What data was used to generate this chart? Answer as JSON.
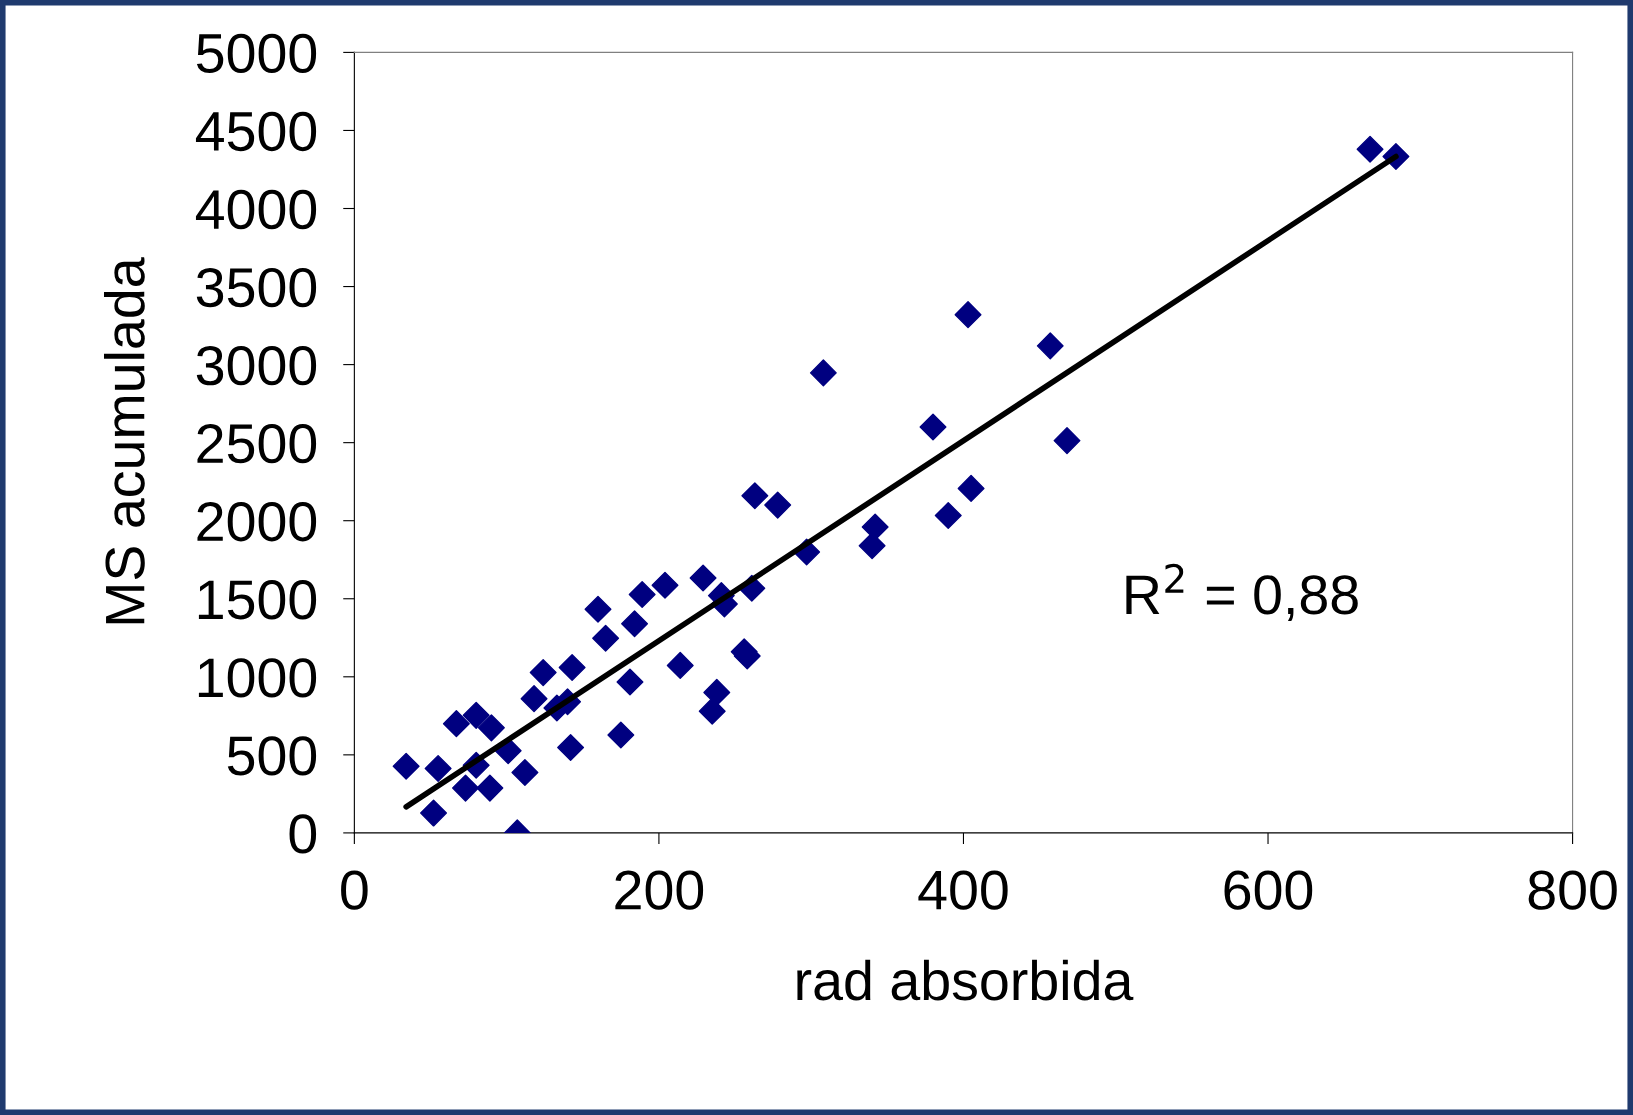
{
  "chart_data": {
    "type": "scatter",
    "xlabel": "rad absorbida",
    "ylabel": "MS acumulada",
    "marker": "diamond",
    "grid": false,
    "legend": false,
    "xlim": [
      0,
      800
    ],
    "xticks": [
      0,
      200,
      400,
      600,
      800
    ],
    "ylim": [
      0,
      5000
    ],
    "yticks": [
      0,
      500,
      1000,
      1500,
      2000,
      2500,
      3000,
      3500,
      4000,
      4500,
      5000
    ],
    "annotations": [
      "R$^{2}$ = 0,88"
    ],
    "series": [
      {
        "color": "#000080",
        "x": [
          34,
          55,
          52,
          67,
          73,
          80,
          80,
          89,
          90,
          101,
          107,
          112,
          118,
          124,
          133,
          140,
          142,
          143,
          160,
          165,
          175,
          181,
          184,
          189,
          204,
          214,
          229,
          235,
          238,
          241,
          243,
          256,
          258,
          261,
          263,
          278,
          297,
          308,
          340,
          342,
          380,
          390,
          403,
          405,
          457,
          468,
          667,
          684
        ],
        "values": [
          427,
          413,
          127,
          700,
          287,
          753,
          433,
          287,
          673,
          527,
          0,
          387,
          860,
          1027,
          800,
          840,
          547,
          1060,
          1433,
          1247,
          627,
          967,
          1340,
          1527,
          1587,
          1073,
          1633,
          780,
          900,
          1520,
          1467,
          1160,
          1133,
          1567,
          2160,
          2100,
          1800,
          2947,
          1840,
          1960,
          2600,
          2033,
          3320,
          2207,
          3120,
          2513,
          4380,
          4333
        ]
      },
      {
        "type": "line",
        "color": "#000000",
        "marker": "none",
        "x": [
          34,
          684
        ],
        "values": [
          167,
          4333
        ]
      }
    ]
  }
}
